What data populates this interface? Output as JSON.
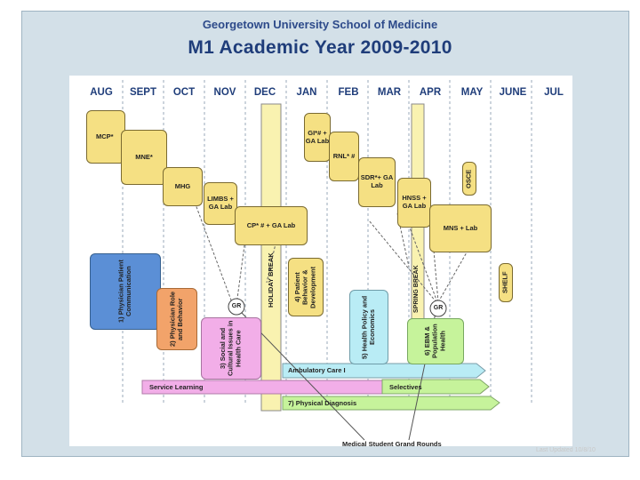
{
  "header": {
    "institution": "Georgetown University School of Medicine",
    "title": "M1 Academic Year 2009-2010"
  },
  "months": [
    "AUG",
    "SEPT",
    "OCT",
    "NOV",
    "DEC",
    "JAN",
    "FEB",
    "MAR",
    "APR",
    "MAY",
    "JUNE",
    "JUL"
  ],
  "breaks": {
    "holiday": "HOLIDAY BREAK",
    "spring": "SPRING BREAK"
  },
  "courses": {
    "mcp": "MCP*",
    "mne": "MNE*",
    "mhg": "MHG",
    "limbs": "LIMBS + GA Lab",
    "cp": "CP* # + GA Lab",
    "gi": "GI*# + GA Lab",
    "rnl": "RNL* #",
    "sdr": "SDR*+ GA Lab",
    "hnss": "HNSS + GA Lab",
    "mns": "MNS + Lab",
    "osce": "OSCE",
    "shelf": "SHELF"
  },
  "themes": {
    "t1": "1) Physician Patient Communication",
    "t2": "2) Physician Role and Behavior",
    "t3": "3) Social and Cultural Issues in Health Care",
    "t4": "4) Patient Behavior & Development",
    "t5": "5) Health Policy and Economics",
    "t6": "6) EBM & Population Health"
  },
  "tracks": {
    "ambulatory": "Ambulatory Care I",
    "service": "Service Learning",
    "selectives": "Selectives",
    "pd": "7) Physical Diagnosis"
  },
  "gr": "GR",
  "grand_rounds": "Medical Student Grand Rounds",
  "updated": "Last Updated 10/8/10",
  "colors": {
    "yellow": "#f5e083",
    "blue": "#5b8fd6",
    "orange": "#f2a36a",
    "pink": "#f2aee8",
    "cyan": "#b9ecf5",
    "green": "#c6f39b"
  }
}
